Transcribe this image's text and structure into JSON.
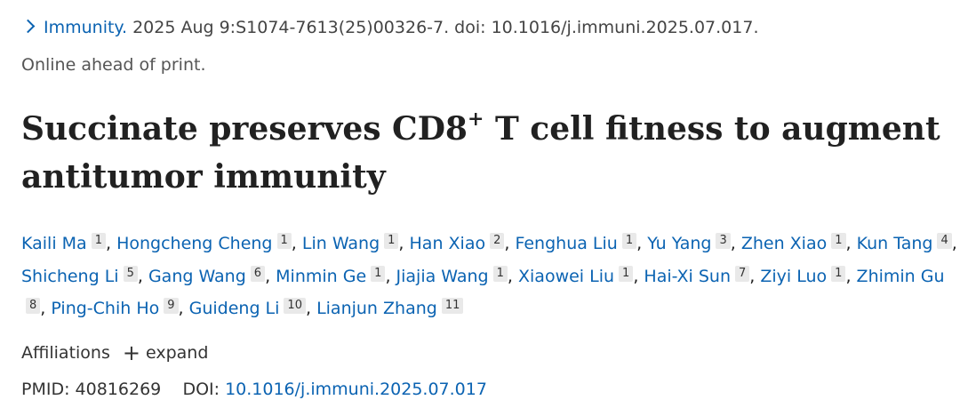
{
  "citation": {
    "journal": "Immunity.",
    "details": "2025 Aug 9:S1074-7613(25)00326-7. doi: 10.1016/j.immuni.2025.07.017.",
    "status": "Online ahead of print."
  },
  "title": {
    "before": "Succinate preserves CD8",
    "superscript": "+",
    "after": " T cell fitness to augment antitumor immunity"
  },
  "author_separator": ",",
  "authors": [
    {
      "name": "Kaili Ma",
      "affiliation": "1"
    },
    {
      "name": "Hongcheng Cheng",
      "affiliation": "1"
    },
    {
      "name": "Lin Wang",
      "affiliation": "1"
    },
    {
      "name": "Han Xiao",
      "affiliation": "2"
    },
    {
      "name": "Fenghua Liu",
      "affiliation": "1"
    },
    {
      "name": "Yu Yang",
      "affiliation": "3"
    },
    {
      "name": "Zhen Xiao",
      "affiliation": "1"
    },
    {
      "name": "Kun Tang",
      "affiliation": "4"
    },
    {
      "name": "Shicheng Li",
      "affiliation": "5"
    },
    {
      "name": "Gang Wang",
      "affiliation": "6"
    },
    {
      "name": "Minmin Ge",
      "affiliation": "1"
    },
    {
      "name": "Jiajia Wang",
      "affiliation": "1"
    },
    {
      "name": "Xiaowei Liu",
      "affiliation": "1"
    },
    {
      "name": "Hai-Xi Sun",
      "affiliation": "7"
    },
    {
      "name": "Ziyi Luo",
      "affiliation": "1"
    },
    {
      "name": "Zhimin Gu",
      "affiliation": "8"
    },
    {
      "name": "Ping-Chih Ho",
      "affiliation": "9"
    },
    {
      "name": "Guideng Li",
      "affiliation": "10"
    },
    {
      "name": "Lianjun Zhang",
      "affiliation": "11"
    }
  ],
  "affiliations": {
    "label": "Affiliations",
    "toggle": "expand"
  },
  "identifiers": {
    "pmid_label": "PMID:",
    "pmid": "40816269",
    "doi_label": "DOI:",
    "doi": "10.1016/j.immuni.2025.07.017"
  }
}
